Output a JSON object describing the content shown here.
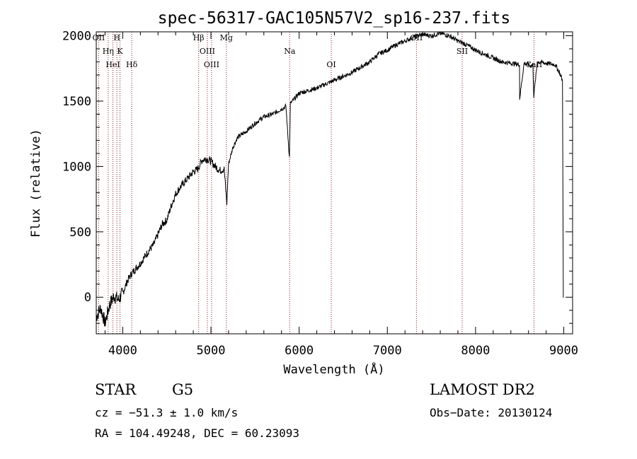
{
  "chart_data": {
    "type": "line",
    "title": "spec-56317-GAC105N57V2_sp16-237.fits",
    "xlabel": "Wavelength (Å)",
    "ylabel": "Flux (relative)",
    "xlim": [
      3700,
      9100
    ],
    "ylim": [
      -280,
      2030
    ],
    "x_ticks": [
      4000,
      5000,
      6000,
      7000,
      8000,
      9000
    ],
    "y_ticks": [
      0,
      500,
      1000,
      1500,
      2000
    ],
    "grid": false,
    "series": [
      {
        "x": [
          3700,
          3750,
          3800,
          3850,
          3900,
          3950,
          4000,
          4050,
          4100,
          4150,
          4200,
          4250,
          4300,
          4350,
          4400,
          4450,
          4500,
          4550,
          4600,
          4650,
          4700,
          4750,
          4800,
          4850,
          4900,
          4950,
          5000,
          5050,
          5100,
          5150,
          5180,
          5200,
          5250,
          5300,
          5400,
          5500,
          5600,
          5700,
          5800,
          5850,
          5890,
          5900,
          5950,
          6000,
          6100,
          6200,
          6300,
          6400,
          6500,
          6600,
          6700,
          6800,
          6900,
          7000,
          7100,
          7200,
          7300,
          7400,
          7500,
          7600,
          7700,
          7800,
          7900,
          8000,
          8100,
          8200,
          8300,
          8400,
          8498,
          8500,
          8550,
          8600,
          8620,
          8650,
          8660,
          8700,
          8800,
          8900,
          8950,
          8985,
          8995,
          9000
        ],
        "y": [
          -150,
          -80,
          -200,
          -60,
          10,
          -20,
          30,
          120,
          180,
          220,
          260,
          310,
          360,
          400,
          480,
          560,
          590,
          700,
          790,
          840,
          880,
          920,
          960,
          980,
          1050,
          1060,
          1040,
          1000,
          970,
          980,
          720,
          1020,
          1150,
          1220,
          1270,
          1330,
          1380,
          1400,
          1440,
          1460,
          1070,
          1480,
          1520,
          1560,
          1580,
          1600,
          1630,
          1660,
          1690,
          1720,
          1760,
          1800,
          1860,
          1890,
          1930,
          1960,
          1990,
          2010,
          2000,
          2020,
          2000,
          1960,
          1930,
          1890,
          1860,
          1830,
          1800,
          1790,
          1780,
          1520,
          1790,
          1780,
          1770,
          1780,
          1540,
          1800,
          1790,
          1780,
          1720,
          1660,
          0,
          0
        ]
      }
    ],
    "lines": [
      {
        "name": "OII",
        "x": 3727
      },
      {
        "name": "Hη",
        "x": 3835
      },
      {
        "name": "HeI",
        "x": 3889
      },
      {
        "name": "H",
        "x": 3934
      },
      {
        "name": "K",
        "x": 3969
      },
      {
        "name": "Hδ",
        "x": 4102
      },
      {
        "name": "Hβ",
        "x": 4861
      },
      {
        "name": "OIII",
        "x": 4959
      },
      {
        "name": "OIII",
        "x": 5007
      },
      {
        "name": "Mg",
        "x": 5175
      },
      {
        "name": "Na",
        "x": 5893
      },
      {
        "name": "OI",
        "x": 6364
      },
      {
        "name": "OII",
        "x": 7330
      },
      {
        "name": "SII",
        "x": 7848
      },
      {
        "name": "CaII",
        "x": 8662
      }
    ]
  },
  "info": {
    "class_label": "STAR",
    "subclass": "G5",
    "cz": "cz = −51.3 ± 1.0 km/s",
    "coords": "RA = 104.49248, DEC =  60.23093",
    "survey": "LAMOST DR2",
    "obs_date": "Obs−Date: 20130124"
  },
  "colors": {
    "line_marker": "#8b1a1a",
    "spectrum": "#000000"
  }
}
